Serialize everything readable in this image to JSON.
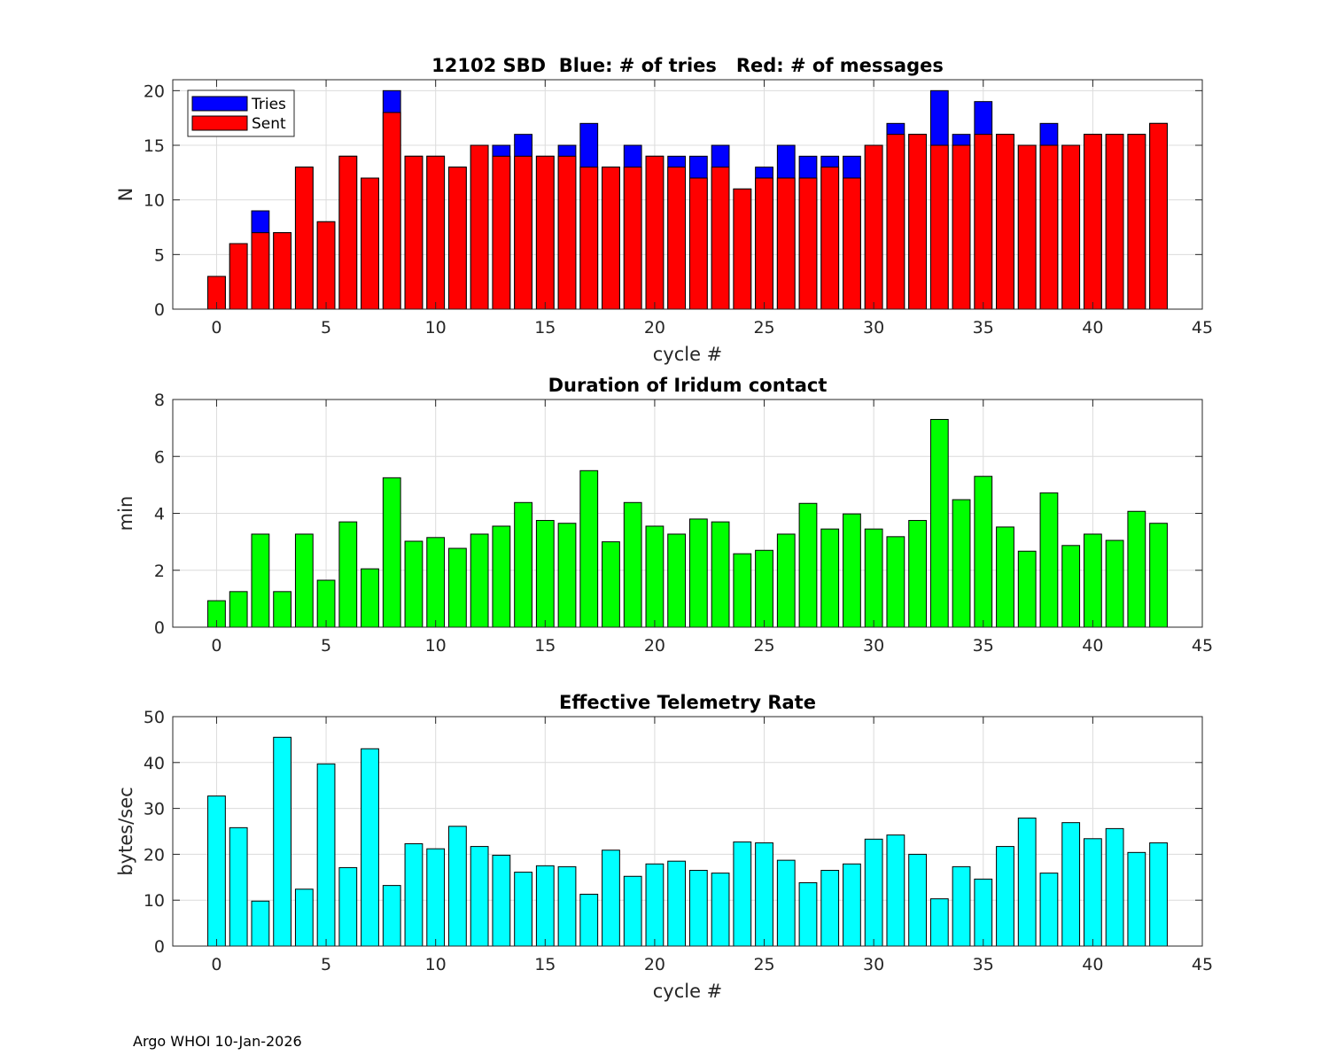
{
  "footer": "Argo WHOI 10-Jan-2026",
  "chart_data": [
    {
      "type": "bar",
      "stacked_overlay": true,
      "title": "12102 SBD  Blue: # of tries   Red: # of messages",
      "xlabel": "cycle #",
      "ylabel": "N",
      "xlim": [
        -2,
        45
      ],
      "ylim": [
        0,
        21
      ],
      "xticks": [
        0,
        5,
        10,
        15,
        20,
        25,
        30,
        35,
        40,
        45
      ],
      "yticks": [
        0,
        5,
        10,
        15,
        20
      ],
      "legend": {
        "position": "top-left",
        "entries": [
          "Tries",
          "Sent"
        ]
      },
      "grid": true,
      "x": [
        0,
        1,
        2,
        3,
        4,
        5,
        6,
        7,
        8,
        9,
        10,
        11,
        12,
        13,
        14,
        15,
        16,
        17,
        18,
        19,
        20,
        21,
        22,
        23,
        24,
        25,
        26,
        27,
        28,
        29,
        30,
        31,
        32,
        33,
        34,
        35,
        36,
        37,
        38,
        39,
        40,
        41,
        42,
        43
      ],
      "series": [
        {
          "name": "Tries",
          "color": "#0000ff",
          "values": [
            3,
            6,
            9,
            7,
            13,
            8,
            14,
            12,
            20,
            14,
            14,
            13,
            15,
            15,
            16,
            14,
            15,
            17,
            13,
            15,
            14,
            14,
            14,
            15,
            11,
            13,
            15,
            14,
            14,
            14,
            15,
            17,
            16,
            20,
            16,
            19,
            16,
            15,
            17,
            15,
            16,
            16,
            16,
            17
          ]
        },
        {
          "name": "Sent",
          "color": "#ff0000",
          "values": [
            3,
            6,
            7,
            7,
            13,
            8,
            14,
            12,
            18,
            14,
            14,
            13,
            15,
            14,
            14,
            14,
            14,
            13,
            13,
            13,
            14,
            13,
            12,
            13,
            11,
            12,
            12,
            12,
            13,
            12,
            15,
            16,
            16,
            15,
            15,
            16,
            16,
            15,
            15,
            15,
            16,
            16,
            16,
            17
          ]
        }
      ]
    },
    {
      "type": "bar",
      "title": "Duration of Iridum contact",
      "xlabel": "",
      "ylabel": "min",
      "xlim": [
        -2,
        45
      ],
      "ylim": [
        0,
        8
      ],
      "xticks": [
        0,
        5,
        10,
        15,
        20,
        25,
        30,
        35,
        40,
        45
      ],
      "yticks": [
        0,
        2,
        4,
        6,
        8
      ],
      "grid": true,
      "x": [
        -1,
        0,
        1,
        2,
        3,
        4,
        5,
        6,
        7,
        8,
        9,
        10,
        11,
        12,
        13,
        14,
        15,
        16,
        17,
        18,
        19,
        20,
        21,
        22,
        23,
        24,
        25,
        26,
        27,
        28,
        29,
        30,
        31,
        32,
        33,
        34,
        35,
        36,
        37,
        38,
        39,
        40,
        41,
        42,
        43
      ],
      "series": [
        {
          "name": "Duration",
          "color": "#00ff00",
          "values": [
            0,
            0.93,
            1.25,
            3.27,
            1.25,
            3.27,
            1.65,
            3.7,
            2.05,
            5.25,
            3.02,
            3.15,
            2.77,
            3.27,
            3.55,
            4.38,
            3.75,
            3.65,
            5.5,
            3.0,
            4.38,
            3.55,
            3.27,
            3.8,
            3.7,
            2.58,
            2.7,
            3.27,
            4.35,
            3.45,
            3.98,
            3.45,
            3.18,
            3.75,
            7.3,
            4.48,
            5.3,
            3.52,
            2.67,
            4.72,
            2.87,
            3.27,
            3.05,
            4.07,
            3.65
          ]
        }
      ]
    },
    {
      "type": "bar",
      "title": "Effective Telemetry Rate",
      "xlabel": "cycle #",
      "ylabel": "bytes/sec",
      "xlim": [
        -2,
        45
      ],
      "ylim": [
        0,
        50
      ],
      "xticks": [
        0,
        5,
        10,
        15,
        20,
        25,
        30,
        35,
        40,
        45
      ],
      "yticks": [
        0,
        10,
        20,
        30,
        40,
        50
      ],
      "grid": true,
      "x": [
        0,
        1,
        2,
        3,
        4,
        5,
        6,
        7,
        8,
        9,
        10,
        11,
        12,
        13,
        14,
        15,
        16,
        17,
        18,
        19,
        20,
        21,
        22,
        23,
        24,
        25,
        26,
        27,
        28,
        29,
        30,
        31,
        32,
        33,
        34,
        35,
        36,
        37,
        38,
        39,
        40,
        41,
        42,
        43
      ],
      "series": [
        {
          "name": "Rate",
          "color": "#00ffff",
          "values": [
            32.7,
            25.8,
            9.8,
            45.5,
            12.4,
            39.7,
            17.1,
            43.0,
            13.2,
            22.3,
            21.2,
            26.1,
            21.7,
            19.8,
            16.1,
            17.5,
            17.3,
            11.3,
            20.9,
            15.2,
            17.9,
            18.5,
            16.5,
            15.9,
            22.7,
            22.5,
            18.7,
            13.8,
            16.5,
            17.9,
            23.3,
            24.2,
            20.0,
            10.3,
            17.3,
            14.6,
            21.7,
            27.9,
            15.9,
            26.9,
            23.4,
            25.6,
            20.4,
            22.5
          ]
        }
      ]
    }
  ]
}
